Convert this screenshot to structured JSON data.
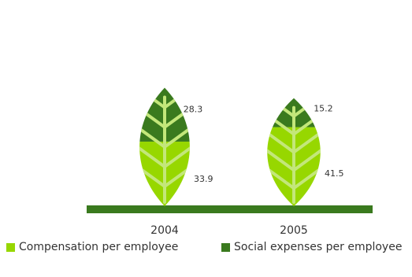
{
  "colors": {
    "compensation": "#97d700",
    "social": "#3a7a1e",
    "vein": "#c3e77a",
    "ground": "#3a7a1e"
  },
  "chart_data": {
    "type": "bar",
    "categories": [
      "2004",
      "2005"
    ],
    "series": [
      {
        "name": "Compensation per employee",
        "values": [
          33.9,
          41.5
        ]
      },
      {
        "name": "Social expenses per employee",
        "values": [
          28.3,
          15.2
        ]
      }
    ],
    "stacked": true,
    "value_labels": [
      [
        "33.9",
        "41.5"
      ],
      [
        "28.3",
        "15.2"
      ]
    ],
    "legend_position": "bottom",
    "grid": false
  }
}
